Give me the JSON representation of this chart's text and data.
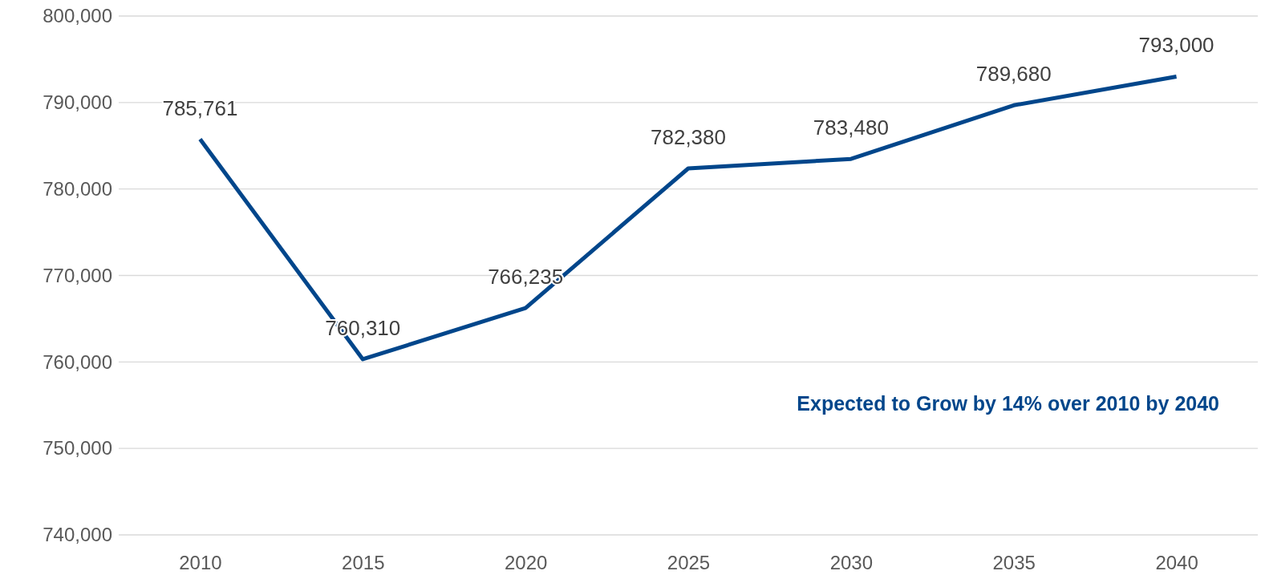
{
  "chart_data": {
    "type": "line",
    "categories": [
      "2010",
      "2015",
      "2020",
      "2025",
      "2030",
      "2035",
      "2040"
    ],
    "series": [
      {
        "color": "#00468b",
        "values": [
          785761,
          760310,
          766235,
          782380,
          783480,
          789680,
          793000
        ],
        "value_labels": [
          "785,761",
          "760,310",
          "766,235",
          "782,380",
          "783,480",
          "789,680",
          "793,000"
        ]
      }
    ],
    "ylim": [
      740000,
      800000
    ],
    "yticks": [
      {
        "value": 740000,
        "label": "740,000"
      },
      {
        "value": 750000,
        "label": "750,000"
      },
      {
        "value": 760000,
        "label": "760,000"
      },
      {
        "value": 770000,
        "label": "770,000"
      },
      {
        "value": 780000,
        "label": "780,000"
      },
      {
        "value": 790000,
        "label": "790,000"
      },
      {
        "value": 800000,
        "label": "800,000"
      }
    ],
    "grid": "y",
    "marker": "none",
    "annotations": [
      "Expected to Grow by 14% over 2010 by 2040"
    ]
  }
}
